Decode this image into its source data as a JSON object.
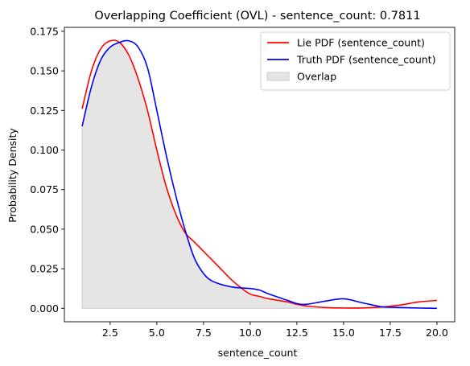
{
  "chart_data": {
    "type": "line",
    "title": "Overlapping Coefficient (OVL) - sentence_count: 0.7811",
    "xlabel": "sentence_count",
    "ylabel": "Probability Density",
    "xlim": [
      0.05,
      20.95
    ],
    "ylim": [
      -0.0085,
      0.1775
    ],
    "x_ticks": [
      2.5,
      5.0,
      7.5,
      10.0,
      12.5,
      15.0,
      17.5,
      20.0
    ],
    "x_tick_labels": [
      "2.5",
      "5.0",
      "7.5",
      "10.0",
      "12.5",
      "15.0",
      "17.5",
      "20.0"
    ],
    "y_ticks": [
      0.0,
      0.025,
      0.05,
      0.075,
      0.1,
      0.125,
      0.15,
      0.175
    ],
    "y_tick_labels": [
      "0.000",
      "0.025",
      "0.050",
      "0.075",
      "0.100",
      "0.125",
      "0.150",
      "0.175"
    ],
    "grid": false,
    "legend_position": "top-right",
    "series": [
      {
        "name": "Lie PDF (sentence_count)",
        "color": "#ff0000",
        "points": [
          [
            1,
            0.126
          ],
          [
            1.5,
            0.15
          ],
          [
            2.0,
            0.164
          ],
          [
            2.5,
            0.169
          ],
          [
            3.0,
            0.168
          ],
          [
            3.5,
            0.16
          ],
          [
            4.0,
            0.145
          ],
          [
            4.5,
            0.125
          ],
          [
            5.0,
            0.1
          ],
          [
            5.5,
            0.077
          ],
          [
            6.0,
            0.06
          ],
          [
            6.5,
            0.048
          ],
          [
            7.0,
            0.042
          ],
          [
            7.5,
            0.036
          ],
          [
            8.0,
            0.03
          ],
          [
            8.5,
            0.024
          ],
          [
            9.0,
            0.018
          ],
          [
            9.5,
            0.013
          ],
          [
            10.0,
            0.009
          ],
          [
            10.5,
            0.0075
          ],
          [
            11.0,
            0.006
          ],
          [
            12.0,
            0.004
          ],
          [
            12.5,
            0.0025
          ],
          [
            13.0,
            0.0015
          ],
          [
            14.0,
            0.0005
          ],
          [
            15.0,
            0.0002
          ],
          [
            16.0,
            0.0002
          ],
          [
            17.0,
            0.0008
          ],
          [
            18.0,
            0.002
          ],
          [
            19.0,
            0.004
          ],
          [
            20.0,
            0.005
          ]
        ]
      },
      {
        "name": "Truth PDF (sentence_count)",
        "color": "#0000ff",
        "points": [
          [
            1,
            0.115
          ],
          [
            1.5,
            0.14
          ],
          [
            2.0,
            0.157
          ],
          [
            2.5,
            0.165
          ],
          [
            3.0,
            0.168
          ],
          [
            3.5,
            0.169
          ],
          [
            4.0,
            0.165
          ],
          [
            4.5,
            0.152
          ],
          [
            5.0,
            0.125
          ],
          [
            5.5,
            0.097
          ],
          [
            6.0,
            0.072
          ],
          [
            6.5,
            0.05
          ],
          [
            7.0,
            0.032
          ],
          [
            7.5,
            0.022
          ],
          [
            8.0,
            0.017
          ],
          [
            9.0,
            0.0135
          ],
          [
            10.0,
            0.0125
          ],
          [
            10.5,
            0.0115
          ],
          [
            11.0,
            0.009
          ],
          [
            12.0,
            0.005
          ],
          [
            12.5,
            0.003
          ],
          [
            13.0,
            0.0025
          ],
          [
            14.0,
            0.0045
          ],
          [
            15.0,
            0.006
          ],
          [
            16.0,
            0.0035
          ],
          [
            17.0,
            0.001
          ],
          [
            17.5,
            0.0007
          ],
          [
            18.0,
            0.0005
          ],
          [
            19.0,
            0.0002
          ],
          [
            20.0,
            0.0
          ]
        ]
      }
    ],
    "overlap": {
      "name": "Overlap",
      "color": "#e5e5e5",
      "edge_color": "#cccccc"
    }
  }
}
